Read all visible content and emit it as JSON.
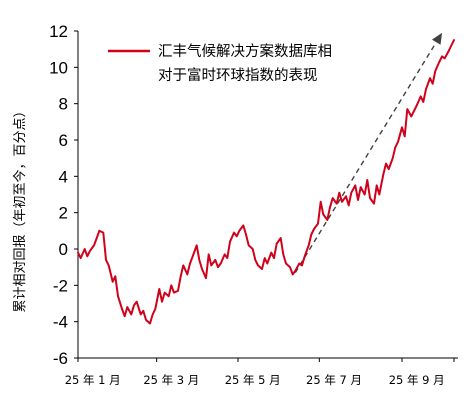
{
  "chart_data": {
    "type": "line",
    "title": "",
    "ylabel": "累计相对回报（年初至今，百分点）",
    "xlabel": "",
    "ylim": [
      -6,
      12
    ],
    "yticks": [
      -6,
      -4,
      -2,
      0,
      2,
      4,
      6,
      8,
      10,
      12
    ],
    "x_tick_labels": [
      "25 年 1 月",
      "25 年 3 月",
      "25 年 5 月",
      "25 年 7 月",
      "25 年 9 月"
    ],
    "legend": {
      "position": "top-center",
      "label_lines": [
        "汇丰气候解决方案数据库相",
        "对于富时环球指数的表现"
      ]
    },
    "grid": false,
    "colors": {
      "series": "#d0021b",
      "trend": "#404040",
      "axis": "#000000"
    },
    "series": [
      {
        "name": "汇丰气候解决方案数据库相对于富时环球指数的表现",
        "x": [
          "2025-01-01",
          "2025-01-03",
          "2025-01-06",
          "2025-01-08",
          "2025-01-10",
          "2025-01-13",
          "2025-01-15",
          "2025-01-17",
          "2025-01-20",
          "2025-01-22",
          "2025-01-24",
          "2025-01-27",
          "2025-01-29",
          "2025-01-31",
          "2025-02-03",
          "2025-02-05",
          "2025-02-07",
          "2025-02-10",
          "2025-02-12",
          "2025-02-14",
          "2025-02-17",
          "2025-02-19",
          "2025-02-21",
          "2025-02-24",
          "2025-02-26",
          "2025-02-28",
          "2025-03-03",
          "2025-03-05",
          "2025-03-07",
          "2025-03-10",
          "2025-03-12",
          "2025-03-14",
          "2025-03-17",
          "2025-03-19",
          "2025-03-21",
          "2025-03-24",
          "2025-03-26",
          "2025-03-28",
          "2025-03-31",
          "2025-04-02",
          "2025-04-04",
          "2025-04-07",
          "2025-04-09",
          "2025-04-11",
          "2025-04-14",
          "2025-04-16",
          "2025-04-18",
          "2025-04-21",
          "2025-04-23",
          "2025-04-25",
          "2025-04-28",
          "2025-04-30",
          "2025-05-02",
          "2025-05-05",
          "2025-05-07",
          "2025-05-09",
          "2025-05-12",
          "2025-05-14",
          "2025-05-16",
          "2025-05-19",
          "2025-05-21",
          "2025-05-23",
          "2025-05-26",
          "2025-05-28",
          "2025-05-30",
          "2025-06-02",
          "2025-06-04",
          "2025-06-06",
          "2025-06-09",
          "2025-06-11",
          "2025-06-13",
          "2025-06-16",
          "2025-06-18",
          "2025-06-20",
          "2025-06-23",
          "2025-06-25",
          "2025-06-27",
          "2025-06-30",
          "2025-07-02",
          "2025-07-04",
          "2025-07-07",
          "2025-07-09",
          "2025-07-11",
          "2025-07-14",
          "2025-07-16",
          "2025-07-18",
          "2025-07-21",
          "2025-07-23",
          "2025-07-25",
          "2025-07-28",
          "2025-07-30",
          "2025-08-01",
          "2025-08-04",
          "2025-08-06",
          "2025-08-08",
          "2025-08-11",
          "2025-08-13",
          "2025-08-15",
          "2025-08-18",
          "2025-08-20",
          "2025-08-22",
          "2025-08-25",
          "2025-08-27",
          "2025-08-29",
          "2025-09-01",
          "2025-09-03",
          "2025-09-05",
          "2025-09-08",
          "2025-09-10",
          "2025-09-12",
          "2025-09-15",
          "2025-09-17",
          "2025-09-19",
          "2025-09-22",
          "2025-09-24",
          "2025-09-26",
          "2025-09-29",
          "2025-10-01",
          "2025-10-03",
          "2025-10-06",
          "2025-10-08",
          "2025-10-10"
        ],
        "values": [
          -0.2,
          -0.5,
          0.0,
          -0.4,
          -0.1,
          0.2,
          0.6,
          1.0,
          0.9,
          -0.6,
          -0.9,
          -1.8,
          -1.5,
          -2.6,
          -3.3,
          -3.7,
          -3.2,
          -3.6,
          -3.1,
          -2.9,
          -3.6,
          -3.4,
          -3.9,
          -4.1,
          -3.6,
          -3.3,
          -2.2,
          -2.9,
          -2.4,
          -2.6,
          -2.0,
          -2.4,
          -2.3,
          -1.5,
          -0.9,
          -1.4,
          -0.8,
          -0.4,
          0.2,
          -0.6,
          -1.1,
          -1.6,
          -0.3,
          -0.9,
          -0.6,
          -1.0,
          -0.8,
          -0.3,
          -0.5,
          0.4,
          0.9,
          0.7,
          1.0,
          1.3,
          0.8,
          0.2,
          0.0,
          -0.6,
          -0.9,
          -1.1,
          -0.5,
          -0.8,
          -0.2,
          -0.5,
          0.3,
          0.6,
          -0.3,
          -0.8,
          -1.0,
          -1.4,
          -1.2,
          -0.8,
          -0.9,
          -0.4,
          0.2,
          0.8,
          1.1,
          1.4,
          2.6,
          1.9,
          1.6,
          2.3,
          2.8,
          2.5,
          3.1,
          2.6,
          2.9,
          2.4,
          3.1,
          3.5,
          2.7,
          3.4,
          3.0,
          3.8,
          2.8,
          2.5,
          3.5,
          3.0,
          4.1,
          4.7,
          4.4,
          5.0,
          5.6,
          5.9,
          6.7,
          6.2,
          7.7,
          7.3,
          7.6,
          7.9,
          8.4,
          8.1,
          8.8,
          9.4,
          9.1,
          9.8,
          10.3,
          10.6,
          10.5,
          10.9,
          11.2,
          11.5
        ]
      }
    ],
    "annotations": [
      {
        "type": "arrow",
        "style": "dashed",
        "label": "",
        "from": {
          "x": "2025-06-13",
          "y": -1.3
        },
        "to": {
          "x": "2025-10-01",
          "y": 11.9
        }
      }
    ]
  }
}
